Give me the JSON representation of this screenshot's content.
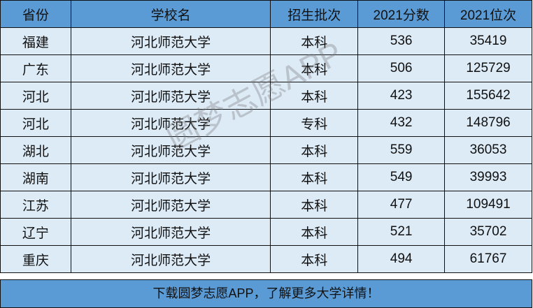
{
  "headers": [
    "省份",
    "学校名",
    "招生批次",
    "2021分数",
    "2021位次"
  ],
  "rows": [
    [
      "福建",
      "河北师范大学",
      "本科",
      "536",
      "35419"
    ],
    [
      "广东",
      "河北师范大学",
      "本科",
      "506",
      "125729"
    ],
    [
      "河北",
      "河北师范大学",
      "本科",
      "423",
      "155642"
    ],
    [
      "河北",
      "河北师范大学",
      "专科",
      "432",
      "148796"
    ],
    [
      "湖北",
      "河北师范大学",
      "本科",
      "559",
      "36053"
    ],
    [
      "湖南",
      "河北师范大学",
      "本科",
      "549",
      "39993"
    ],
    [
      "江苏",
      "河北师范大学",
      "本科",
      "477",
      "109491"
    ],
    [
      "辽宁",
      "河北师范大学",
      "本科",
      "521",
      "35702"
    ],
    [
      "重庆",
      "河北师范大学",
      "本科",
      "494",
      "61767"
    ]
  ],
  "footer": "下载圆梦志愿APP，了解更多大学详情！",
  "watermark": "圆梦志愿APP",
  "colors": {
    "header": "#5b9bd5",
    "body": "#ddebf7"
  }
}
